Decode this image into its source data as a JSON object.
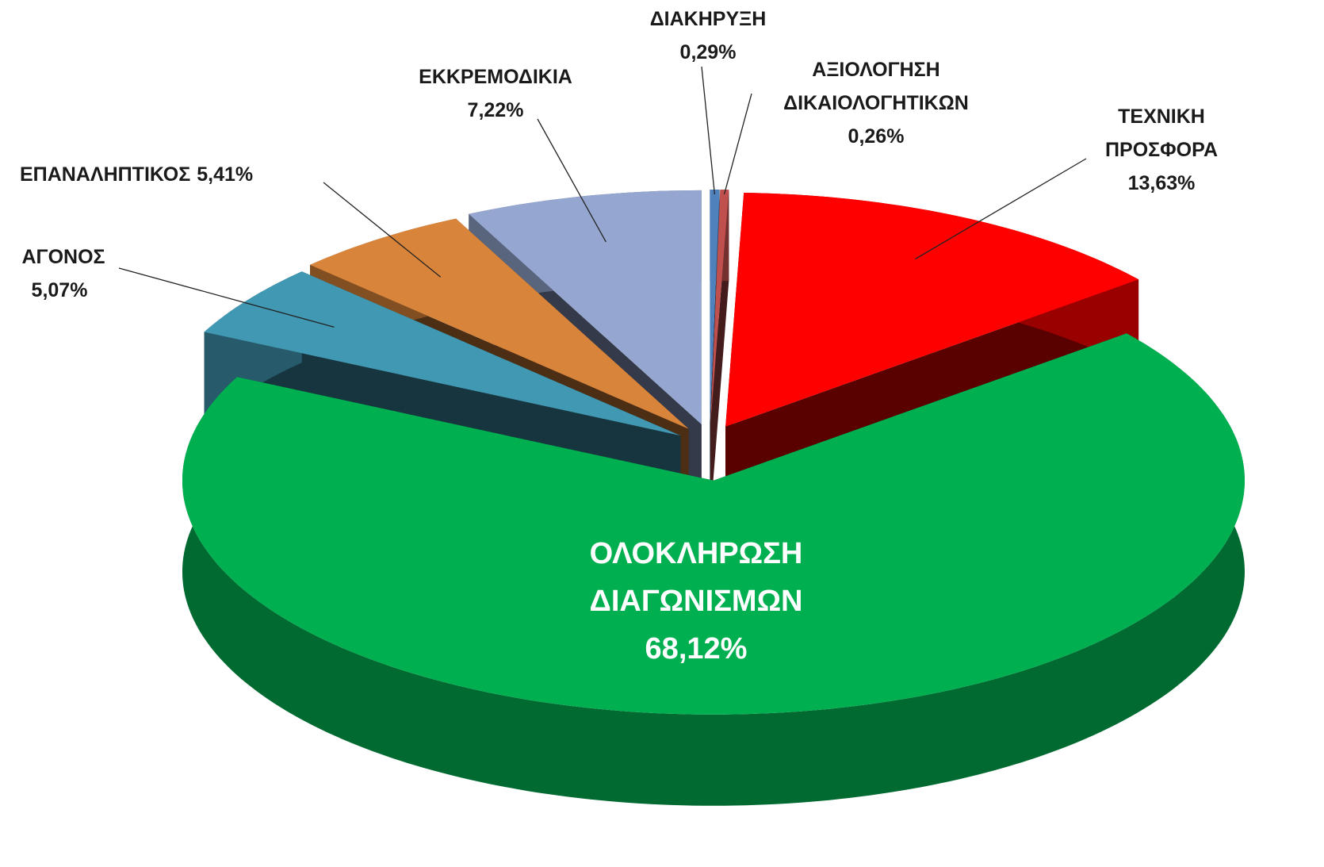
{
  "chart_data": {
    "type": "pie",
    "categories": [
      "ΔΙΑΚΗΡΥΞΗ",
      "ΑΞΙΟΛΟΓΗΣΗ ΔΙΚΑΙΟΛΟΓΗΤΙΚΩΝ",
      "ΤΕΧΝΙΚΗ ΠΡΟΣΦΟΡΑ",
      "ΟΛΟΚΛΗΡΩΣΗ ΔΙΑΓΩΝΙΣΜΩΝ",
      "ΑΓΟΝΟΣ",
      "ΕΠΑΝΑΛΗΠΤΙΚΟΣ",
      "ΕΚΚΡΕΜΟΔΙΚΙΑ"
    ],
    "values": [
      0.29,
      0.26,
      13.63,
      68.12,
      5.07,
      5.41,
      7.22
    ],
    "value_labels": [
      "0,29%",
      "0,26%",
      "13,63%",
      "68,12%",
      "5,07%",
      "5,41%",
      "7,22%"
    ],
    "colors": [
      "#4f81bd",
      "#c0504d",
      "#ff0000",
      "#00b050",
      "#4198b2",
      "#d9843b",
      "#95a7d0"
    ]
  }
}
